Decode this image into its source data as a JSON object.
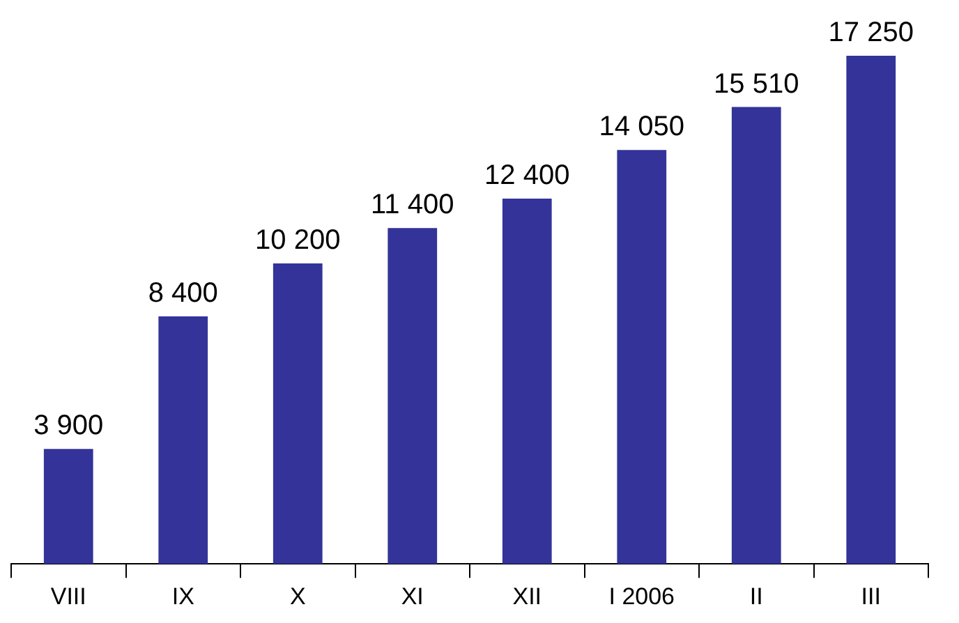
{
  "chart_data": {
    "type": "bar",
    "categories": [
      "VIII",
      "IX",
      "X",
      "XI",
      "XII",
      "I 2006",
      "II",
      "III"
    ],
    "values": [
      3900,
      8400,
      10200,
      11400,
      12400,
      14050,
      15510,
      17250
    ],
    "value_labels": [
      "3 900",
      "8 400",
      "10 200",
      "11 400",
      "12 400",
      "14 050",
      "15 510",
      "17 250"
    ],
    "color": "#333399",
    "ylim": [
      0,
      17250
    ],
    "grid": false
  }
}
